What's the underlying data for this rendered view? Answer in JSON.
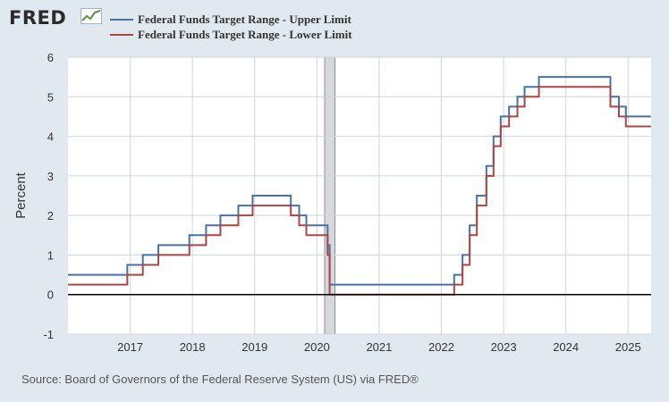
{
  "header": {
    "logo_text": "FRED"
  },
  "chart_data": {
    "type": "line",
    "step": true,
    "title": "",
    "xlabel": "",
    "ylabel": "Percent",
    "xlim": [
      2016.0,
      2025.37
    ],
    "ylim": [
      -1,
      6
    ],
    "yticks": [
      -1,
      0,
      1,
      2,
      3,
      4,
      5,
      6
    ],
    "xticks": [
      "2017",
      "2018",
      "2019",
      "2020",
      "2021",
      "2022",
      "2023",
      "2024",
      "2025"
    ],
    "recession": [
      {
        "start": 2020.125,
        "end": 2020.29
      }
    ],
    "zero_line": true,
    "legend_position": "top-left",
    "series": [
      {
        "name": "Federal Funds Target Range - Upper Limit",
        "color": "#4572a7",
        "points": [
          [
            "2016-01-01",
            0.5
          ],
          [
            "2016-12-15",
            0.75
          ],
          [
            "2017-03-16",
            1.0
          ],
          [
            "2017-06-15",
            1.25
          ],
          [
            "2017-12-14",
            1.5
          ],
          [
            "2018-03-22",
            1.75
          ],
          [
            "2018-06-14",
            2.0
          ],
          [
            "2018-09-27",
            2.25
          ],
          [
            "2018-12-20",
            2.5
          ],
          [
            "2019-08-01",
            2.25
          ],
          [
            "2019-09-19",
            2.0
          ],
          [
            "2019-10-31",
            1.75
          ],
          [
            "2020-03-04",
            1.25
          ],
          [
            "2020-03-16",
            0.25
          ],
          [
            "2022-03-17",
            0.5
          ],
          [
            "2022-05-05",
            1.0
          ],
          [
            "2022-06-16",
            1.75
          ],
          [
            "2022-07-28",
            2.5
          ],
          [
            "2022-09-22",
            3.25
          ],
          [
            "2022-11-03",
            4.0
          ],
          [
            "2022-12-15",
            4.5
          ],
          [
            "2023-02-02",
            4.75
          ],
          [
            "2023-03-23",
            5.0
          ],
          [
            "2023-05-04",
            5.25
          ],
          [
            "2023-07-27",
            5.5
          ],
          [
            "2024-09-19",
            5.0
          ],
          [
            "2024-11-08",
            4.75
          ],
          [
            "2024-12-19",
            4.5
          ],
          [
            "2025-05-15",
            4.5
          ]
        ]
      },
      {
        "name": "Federal Funds Target Range - Lower Limit",
        "color": "#aa4643",
        "points": [
          [
            "2016-01-01",
            0.25
          ],
          [
            "2016-12-15",
            0.5
          ],
          [
            "2017-03-16",
            0.75
          ],
          [
            "2017-06-15",
            1.0
          ],
          [
            "2017-12-14",
            1.25
          ],
          [
            "2018-03-22",
            1.5
          ],
          [
            "2018-06-14",
            1.75
          ],
          [
            "2018-09-27",
            2.0
          ],
          [
            "2018-12-20",
            2.25
          ],
          [
            "2019-08-01",
            2.0
          ],
          [
            "2019-09-19",
            1.75
          ],
          [
            "2019-10-31",
            1.5
          ],
          [
            "2020-03-04",
            1.0
          ],
          [
            "2020-03-16",
            0.0
          ],
          [
            "2022-03-17",
            0.25
          ],
          [
            "2022-05-05",
            0.75
          ],
          [
            "2022-06-16",
            1.5
          ],
          [
            "2022-07-28",
            2.25
          ],
          [
            "2022-09-22",
            3.0
          ],
          [
            "2022-11-03",
            3.75
          ],
          [
            "2022-12-15",
            4.25
          ],
          [
            "2023-02-02",
            4.5
          ],
          [
            "2023-03-23",
            4.75
          ],
          [
            "2023-05-04",
            5.0
          ],
          [
            "2023-07-27",
            5.25
          ],
          [
            "2024-09-19",
            4.75
          ],
          [
            "2024-11-08",
            4.5
          ],
          [
            "2024-12-19",
            4.25
          ],
          [
            "2025-05-15",
            4.25
          ]
        ]
      }
    ]
  },
  "source": "Source: Board of Governors of the Federal Reserve System (US) via FRED®"
}
